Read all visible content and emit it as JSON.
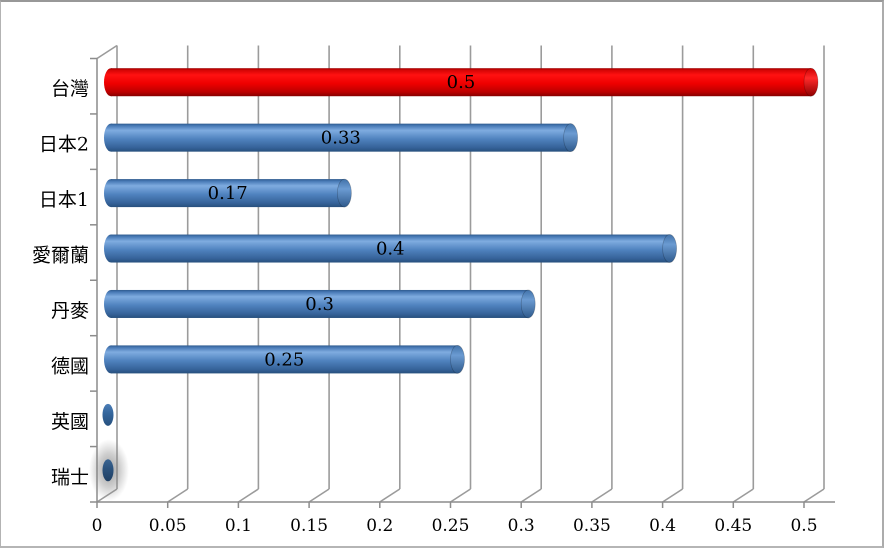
{
  "chart_data": {
    "type": "bar",
    "orientation": "horizontal",
    "style": "3d-cylinder",
    "title": "",
    "xlabel": "",
    "ylabel": "",
    "categories": [
      "台灣",
      "日本2",
      "日本1",
      "愛爾蘭",
      "丹麥",
      "德國",
      "英國",
      "瑞士"
    ],
    "values": [
      0.5,
      0.33,
      0.17,
      0.4,
      0.3,
      0.25,
      0,
      0
    ],
    "bar_labels": [
      "0.5",
      "0.33",
      "0.17",
      "0.4",
      "0.3",
      "0.25",
      "",
      ""
    ],
    "x_ticks": [
      "0",
      "0.05",
      "0.1",
      "0.15",
      "0.2",
      "0.25",
      "0.3",
      "0.35",
      "0.4",
      "0.45",
      "0.5"
    ],
    "xlim": [
      0,
      0.5
    ],
    "tick_step": 0.05,
    "grid": true,
    "legend": false,
    "highlight_category": "台灣",
    "shadow_category": "瑞士",
    "colors": {
      "bar_default": "#4F81BD",
      "bar_highlight": "#FF0000",
      "zero_cap_uk": "#35679E",
      "zero_cap_ch": "#2B537E",
      "label_text": "#000000",
      "gridline": "#9B9B9B",
      "axis_line": "#8C8C8C",
      "border": "#A6A6A6",
      "background": "#FFFFFF"
    }
  }
}
